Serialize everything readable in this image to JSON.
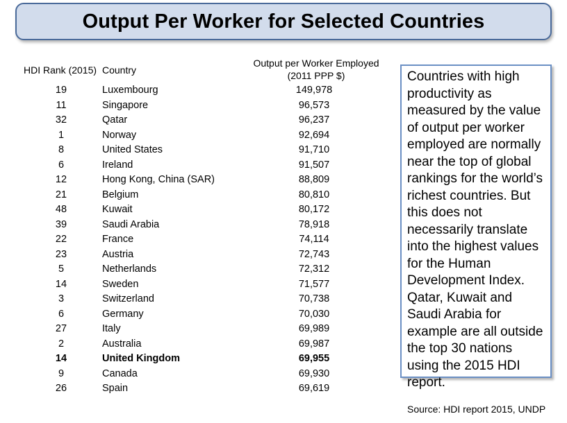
{
  "title": "Output Per Worker for Selected Countries",
  "table": {
    "headers": {
      "rank": "HDI Rank (2015)",
      "country": "Country",
      "output_line1": "Output per Worker Employed",
      "output_line2": "(2011 PPP $)"
    },
    "rows": [
      {
        "rank": "19",
        "country": "Luxembourg",
        "value": "149,978",
        "bold": false
      },
      {
        "rank": "11",
        "country": "Singapore",
        "value": "96,573",
        "bold": false
      },
      {
        "rank": "32",
        "country": "Qatar",
        "value": "96,237",
        "bold": false
      },
      {
        "rank": "1",
        "country": "Norway",
        "value": "92,694",
        "bold": false
      },
      {
        "rank": "8",
        "country": "United States",
        "value": "91,710",
        "bold": false
      },
      {
        "rank": "6",
        "country": "Ireland",
        "value": "91,507",
        "bold": false
      },
      {
        "rank": "12",
        "country": "Hong Kong, China (SAR)",
        "value": "88,809",
        "bold": false
      },
      {
        "rank": "21",
        "country": "Belgium",
        "value": "80,810",
        "bold": false
      },
      {
        "rank": "48",
        "country": "Kuwait",
        "value": "80,172",
        "bold": false
      },
      {
        "rank": "39",
        "country": "Saudi Arabia",
        "value": "78,918",
        "bold": false
      },
      {
        "rank": "22",
        "country": "France",
        "value": "74,114",
        "bold": false
      },
      {
        "rank": "23",
        "country": "Austria",
        "value": "72,743",
        "bold": false
      },
      {
        "rank": "5",
        "country": "Netherlands",
        "value": "72,312",
        "bold": false
      },
      {
        "rank": "14",
        "country": "Sweden",
        "value": "71,577",
        "bold": false
      },
      {
        "rank": "3",
        "country": "Switzerland",
        "value": "70,738",
        "bold": false
      },
      {
        "rank": "6",
        "country": "Germany",
        "value": "70,030",
        "bold": false
      },
      {
        "rank": "27",
        "country": "Italy",
        "value": "69,989",
        "bold": false
      },
      {
        "rank": "2",
        "country": "Australia",
        "value": "69,987",
        "bold": false
      },
      {
        "rank": "14",
        "country": "United Kingdom",
        "value": "69,955",
        "bold": true
      },
      {
        "rank": "9",
        "country": "Canada",
        "value": "69,930",
        "bold": false
      },
      {
        "rank": "26",
        "country": "Spain",
        "value": "69,619",
        "bold": false
      }
    ]
  },
  "note": "Countries with high productivity as measured by the value of output per worker employed are normally near the top of global rankings for the world’s richest countries. But this does not necessarily translate into the highest values for the Human Development Index. Qatar, Kuwait and Saudi Arabia for example are all outside the top 30 nations using the 2015 HDI report.",
  "source": "Source: HDI report 2015, UNDP",
  "colors": {
    "banner_fill": "#d2dcec",
    "banner_border": "#4a6a9a",
    "note_border": "#6a8fc4"
  }
}
